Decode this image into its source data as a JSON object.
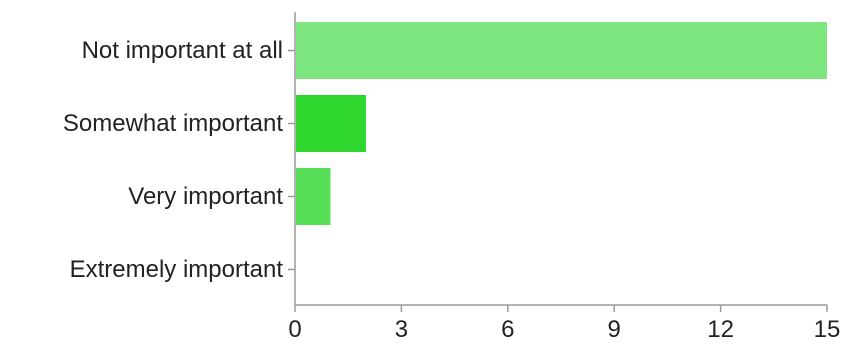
{
  "chart_data": {
    "type": "bar",
    "orientation": "horizontal",
    "categories": [
      "Not important at all",
      "Somewhat important",
      "Very important",
      "Extremely important"
    ],
    "values": [
      15,
      2,
      1,
      0
    ],
    "colors": [
      "#7ee67e",
      "#2ed62e",
      "#56de56",
      "#7ee67e"
    ],
    "xlim": [
      0,
      15
    ],
    "xticks": [
      0,
      3,
      6,
      9,
      12,
      15
    ],
    "title": "",
    "xlabel": "",
    "ylabel": "",
    "grid": false,
    "legend": "none"
  }
}
